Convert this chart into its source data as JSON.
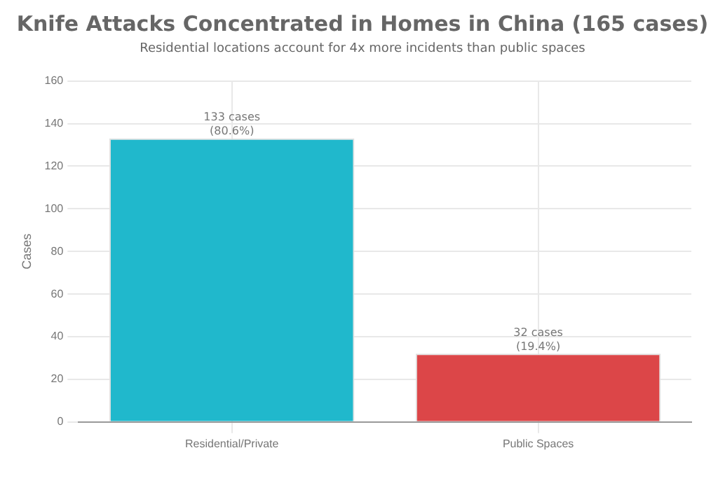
{
  "chart_data": {
    "type": "bar",
    "title": "Knife Attacks Concentrated in Homes in China (165 cases)",
    "subtitle": "Residential locations account for 4x more incidents than public spaces",
    "ylabel": "Cases",
    "categories": [
      "Residential/Private",
      "Public Spaces"
    ],
    "values": [
      133,
      32
    ],
    "colors": [
      "#20b8cc",
      "#dc4648"
    ],
    "value_labels": [
      "133 cases\n(80.6%)",
      "32 cases\n(19.4%)"
    ],
    "ylim": [
      0,
      160
    ],
    "yticks": [
      0,
      20,
      40,
      60,
      80,
      100,
      120,
      140,
      160
    ],
    "grid": true
  }
}
